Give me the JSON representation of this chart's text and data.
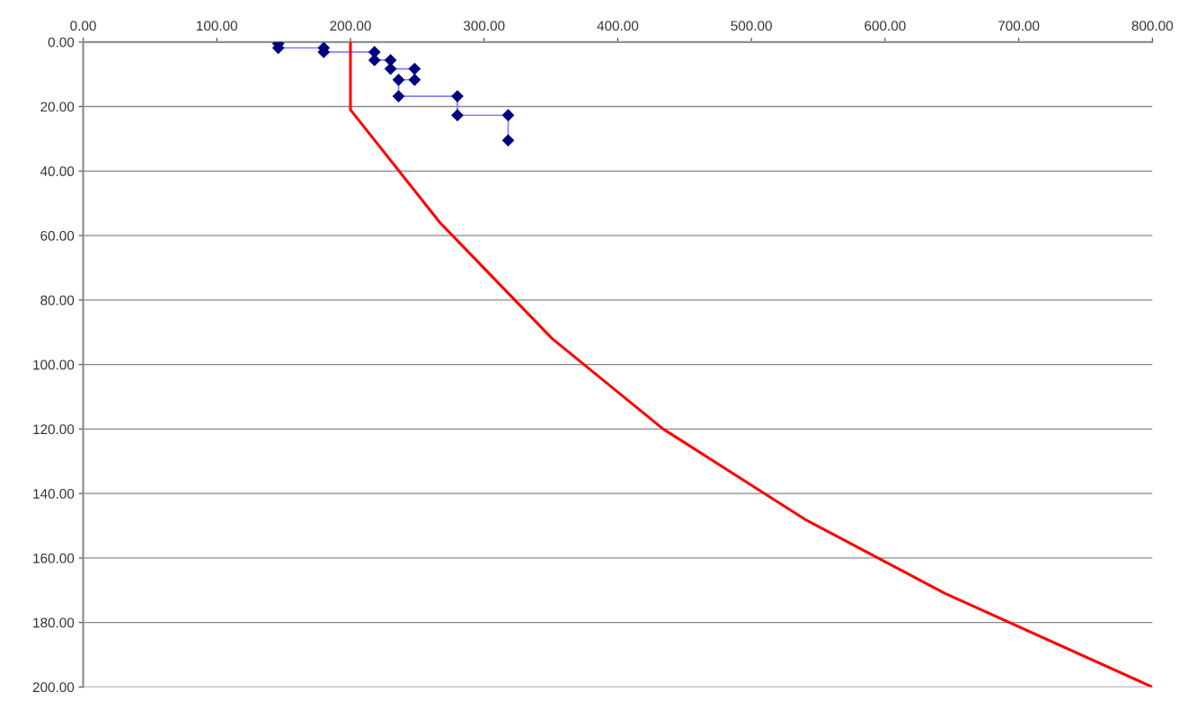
{
  "chart_data": {
    "type": "line",
    "grid": "y",
    "legend": false,
    "xlim": [
      0,
      800
    ],
    "ylim": [
      200,
      0
    ],
    "xticks": [
      {
        "value": 0,
        "label": "0.00"
      },
      {
        "value": 100,
        "label": "100.00"
      },
      {
        "value": 200,
        "label": "200.00"
      },
      {
        "value": 300,
        "label": "300.00"
      },
      {
        "value": 400,
        "label": "400.00"
      },
      {
        "value": 500,
        "label": "500.00"
      },
      {
        "value": 600,
        "label": "600.00"
      },
      {
        "value": 700,
        "label": "700.00"
      },
      {
        "value": 800,
        "label": "800.00"
      }
    ],
    "yticks": [
      {
        "value": 0,
        "label": "0.00"
      },
      {
        "value": 20,
        "label": "20.00"
      },
      {
        "value": 40,
        "label": "40.00"
      },
      {
        "value": 60,
        "label": "60.00"
      },
      {
        "value": 80,
        "label": "80.00"
      },
      {
        "value": 100,
        "label": "100.00"
      },
      {
        "value": 120,
        "label": "120.00"
      },
      {
        "value": 140,
        "label": "140.00"
      },
      {
        "value": 160,
        "label": "160.00"
      },
      {
        "value": 180,
        "label": "180.00"
      },
      {
        "value": 200,
        "label": "200.00"
      }
    ],
    "series": [
      {
        "color": "#8080ff",
        "marker": "diamond",
        "x": [
          146,
          146,
          180,
          180,
          218,
          218,
          230,
          230,
          248,
          248,
          236,
          236,
          280,
          280,
          318,
          318
        ],
        "values": [
          0.5,
          1.8,
          1.8,
          3.1,
          3.1,
          5.6,
          5.6,
          8.3,
          8.3,
          11.7,
          11.7,
          16.8,
          16.8,
          22.7,
          22.7,
          30.5
        ]
      },
      {
        "color": "#ff0000",
        "marker": "none",
        "x": [
          200,
          200,
          267,
          351,
          434,
          540,
          645,
          800
        ],
        "values": [
          0,
          21,
          56,
          92,
          120,
          148,
          171,
          200
        ]
      }
    ]
  }
}
